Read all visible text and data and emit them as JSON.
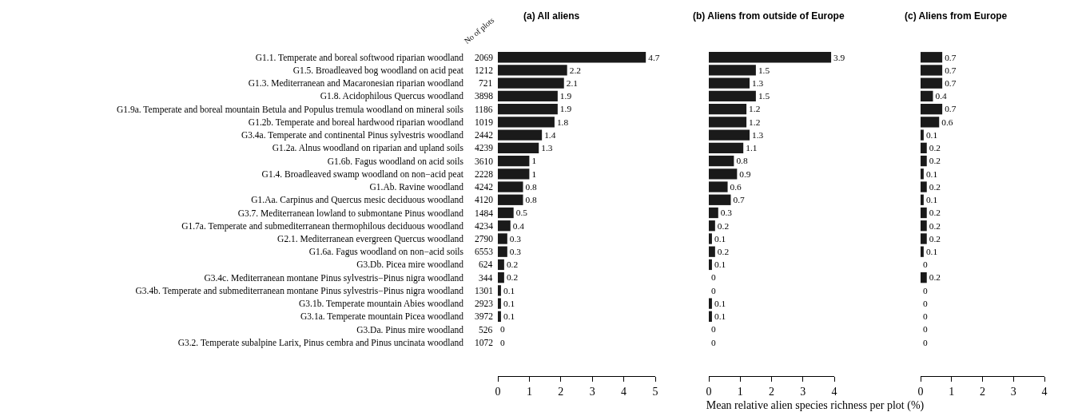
{
  "chart_data": [
    {
      "type": "bar",
      "orientation": "horizontal",
      "title": "(a) All aliens",
      "y2label": "No of plots",
      "data_labels": true,
      "color": "#1a1a1a",
      "grid": false,
      "legend": false,
      "categories": [
        "G1.1. Temperate and boreal softwood riparian woodland",
        "G1.5. Broadleaved bog woodland on acid peat",
        "G1.3. Mediterranean and Macaronesian riparian woodland",
        "G1.8. Acidophilous Quercus woodland",
        "G1.9a. Temperate and boreal mountain Betula and Populus tremula woodland on mineral soils",
        "G1.2b. Temperate and boreal hardwood riparian woodland",
        "G3.4a. Temperate and continental Pinus sylvestris woodland",
        "G1.2a. Alnus woodland on riparian and upland soils",
        "G1.6b. Fagus woodland on acid soils",
        "G1.4. Broadleaved swamp woodland on non−acid peat",
        "G1.Ab. Ravine woodland",
        "G1.Aa. Carpinus and Quercus mesic deciduous woodland",
        "G3.7. Mediterranean lowland to submontane Pinus woodland",
        "G1.7a. Temperate and submediterranean thermophilous deciduous woodland",
        "G2.1. Mediterranean evergreen Quercus woodland",
        "G1.6a. Fagus woodland on non−acid soils",
        "G3.Db. Picea mire woodland",
        "G3.4c. Mediterranean montane Pinus sylvestris−Pinus nigra woodland",
        "G3.4b. Temperate and submediterranean montane Pinus sylvestris−Pinus nigra woodland",
        "G3.1b. Temperate mountain Abies woodland",
        "G3.1a. Temperate mountain Picea woodland",
        "G3.Da. Pinus mire woodland",
        "G3.2. Temperate subalpine Larix, Pinus cembra and Pinus uncinata woodland"
      ],
      "y2_categories": [
        "2069",
        "1212",
        "721",
        "3898",
        "1186",
        "1019",
        "2442",
        "4239",
        "3610",
        "2228",
        "4242",
        "4120",
        "1484",
        "4234",
        "2790",
        "6553",
        "624",
        "344",
        "1301",
        "2923",
        "3972",
        "526",
        "1072"
      ],
      "values": [
        4.7,
        2.2,
        2.1,
        1.9,
        1.9,
        1.8,
        1.4,
        1.3,
        1,
        1,
        0.8,
        0.8,
        0.5,
        0.4,
        0.3,
        0.3,
        0.2,
        0.2,
        0.1,
        0.1,
        0.1,
        0,
        0
      ],
      "xlim": [
        0,
        5
      ],
      "xticks": [
        0,
        1,
        2,
        3,
        4,
        5
      ]
    },
    {
      "type": "bar",
      "orientation": "horizontal",
      "title": "(b) Aliens from outside of Europe",
      "xlabel": "Mean relative alien species richness per plot (%)",
      "data_labels": true,
      "color": "#1a1a1a",
      "grid": false,
      "legend": false,
      "tick_labels": "x",
      "categories": [
        null,
        null,
        null,
        null,
        null,
        null,
        null,
        null,
        null,
        null,
        null,
        null,
        null,
        null,
        null,
        null,
        null,
        null,
        null,
        null,
        null,
        null,
        null
      ],
      "values": [
        3.9,
        1.5,
        1.3,
        1.5,
        1.2,
        1.2,
        1.3,
        1.1,
        0.8,
        0.9,
        0.6,
        0.7,
        0.3,
        0.2,
        0.1,
        0.2,
        0.1,
        0,
        0,
        0.1,
        0.1,
        0,
        0
      ],
      "xlim": [
        0,
        4
      ],
      "xticks": [
        0,
        1,
        2,
        3,
        4
      ]
    },
    {
      "type": "bar",
      "orientation": "horizontal",
      "title": "(c) Aliens from Europe",
      "data_labels": true,
      "color": "#1a1a1a",
      "grid": false,
      "legend": false,
      "tick_labels": "x",
      "categories": [
        null,
        null,
        null,
        null,
        null,
        null,
        null,
        null,
        null,
        null,
        null,
        null,
        null,
        null,
        null,
        null,
        null,
        null,
        null,
        null,
        null,
        null,
        null
      ],
      "values": [
        0.7,
        0.7,
        0.7,
        0.4,
        0.7,
        0.6,
        0.1,
        0.2,
        0.2,
        0.1,
        0.2,
        0.1,
        0.2,
        0.2,
        0.2,
        0.1,
        0,
        0.2,
        0,
        0,
        0,
        0,
        0
      ],
      "xlim": [
        0,
        4
      ],
      "xticks": [
        0,
        1,
        2,
        3,
        4
      ]
    }
  ]
}
